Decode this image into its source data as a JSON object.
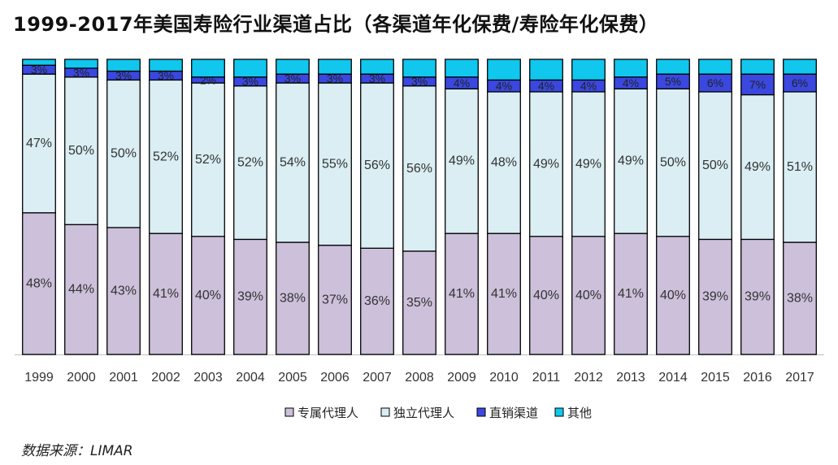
{
  "title": "1999-2017年美国寿险行业渠道占比（各渠道年化保费/寿险年化保费）",
  "source": "数据来源：LIMAR",
  "chart_data": {
    "type": "bar",
    "stacked": true,
    "percent_stacked": true,
    "categories": [
      "1999",
      "2000",
      "2001",
      "2002",
      "2003",
      "2004",
      "2005",
      "2006",
      "2007",
      "2008",
      "2009",
      "2010",
      "2011",
      "2012",
      "2013",
      "2014",
      "2015",
      "2016",
      "2017"
    ],
    "series": [
      {
        "name": "专属代理人",
        "color": "#ccc0da",
        "values": [
          48,
          44,
          43,
          41,
          40,
          39,
          38,
          37,
          36,
          35,
          41,
          41,
          40,
          40,
          41,
          40,
          39,
          39,
          38
        ],
        "labels": [
          "48%",
          "44%",
          "43%",
          "41%",
          "40%",
          "39%",
          "38%",
          "37%",
          "36%",
          "35%",
          "41%",
          "41%",
          "40%",
          "40%",
          "41%",
          "40%",
          "39%",
          "39%",
          "38%"
        ]
      },
      {
        "name": "独立代理人",
        "color": "#daeef3",
        "values": [
          47,
          50,
          50,
          52,
          52,
          52,
          54,
          55,
          56,
          56,
          49,
          48,
          49,
          49,
          49,
          50,
          50,
          49,
          51
        ],
        "labels": [
          "47%",
          "50%",
          "50%",
          "52%",
          "52%",
          "52%",
          "54%",
          "55%",
          "56%",
          "56%",
          "49%",
          "48%",
          "49%",
          "49%",
          "49%",
          "50%",
          "50%",
          "49%",
          "51%"
        ]
      },
      {
        "name": "直销渠道",
        "color": "#3a48e0",
        "values": [
          3,
          3,
          3,
          3,
          2,
          3,
          3,
          3,
          3,
          3,
          4,
          4,
          4,
          4,
          4,
          5,
          6,
          7,
          6
        ],
        "labels": [
          "3%",
          "3%",
          "3%",
          "3%",
          "2%",
          "3%",
          "3%",
          "3%",
          "3%",
          "3%",
          "4%",
          "4%",
          "4%",
          "4%",
          "4%",
          "5%",
          "6%",
          "7%",
          "6%"
        ]
      },
      {
        "name": "其他",
        "color": "#11c7ee",
        "values": [
          2,
          3,
          4,
          4,
          6,
          6,
          5,
          5,
          5,
          6,
          6,
          7,
          7,
          7,
          6,
          5,
          5,
          5,
          5
        ]
      }
    ],
    "ylim": [
      0,
      100
    ],
    "legend_position": "bottom"
  }
}
